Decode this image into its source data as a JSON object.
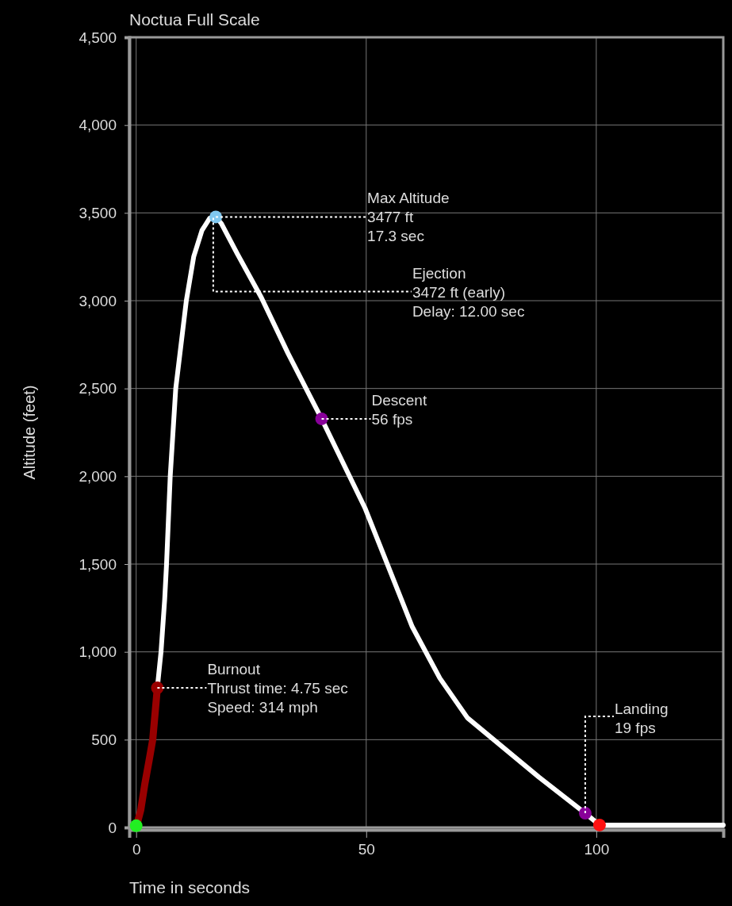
{
  "chart_data": {
    "type": "line",
    "title": "Noctua Full Scale",
    "xlabel": "Time in seconds",
    "ylabel": "Altitude (feet)",
    "xlim": [
      -1.5,
      127.6
    ],
    "ylim": [
      0,
      4500
    ],
    "xticks": [
      0,
      50,
      100
    ],
    "yticks": [
      0,
      500,
      {
        "value": 1000,
        "label": "1,000"
      },
      {
        "value": 1500,
        "label": "1,500"
      },
      {
        "value": 2000,
        "label": "2,000"
      },
      {
        "value": 2500,
        "label": "2,500"
      },
      {
        "value": 3000,
        "label": "3,000"
      },
      {
        "value": 3500,
        "label": "3,500"
      },
      {
        "value": 4000,
        "label": "4,000"
      },
      {
        "value": 4500,
        "label": "4,500"
      }
    ],
    "grid": true,
    "line_style": "solid",
    "series": [
      {
        "color": "#990000",
        "x": [
          0,
          1,
          1.9,
          2.8,
          3.6,
          4.6
        ],
        "values": [
          0,
          100,
          250,
          380,
          500,
          795
        ]
      },
      {
        "color": "#ffffff",
        "x": [
          4.6,
          5.4,
          6.2,
          6.6,
          7.4,
          8.6,
          10.9,
          12.5,
          14.3,
          16,
          17.3,
          18.5,
          22,
          27.2,
          33,
          40.3,
          49.7,
          60,
          66,
          72,
          77.2,
          87.6,
          97.6,
          100.7,
          127.6
        ],
        "values": [
          795,
          1000,
          1300,
          1500,
          2000,
          2500,
          3000,
          3250,
          3400,
          3470,
          3477,
          3440,
          3266,
          3018,
          2700,
          2327,
          1821,
          1143,
          850,
          624,
          511,
          285,
          81,
          14,
          14
        ]
      },
      {
        "type": "scatter",
        "marker": "circle",
        "x": [
          0,
          4.6,
          17.3,
          40.3,
          97.6,
          100.7
        ],
        "values": [
          10,
          795,
          3477,
          2327,
          81,
          14
        ],
        "colors": [
          "#22ee22",
          "#990000",
          "#80c8f0",
          "#880099",
          "#880099",
          "#ff1111"
        ]
      }
    ],
    "annotations": [
      {
        "text": "Max Altitude\n3477 ft\n17.3  sec",
        "x": 17.3,
        "y": 3477
      },
      {
        "text": "Ejection\n3472 ft (early)\nDelay:  12.00 sec",
        "x": 16.75,
        "y": 3472
      },
      "Descent\n56 fps",
      "Burnout\nThrust time: 4.75 sec\nSpeed: 314 mph",
      {
        "text": "Landing\n19 fps",
        "x": 97.6,
        "y": 81
      }
    ]
  }
}
